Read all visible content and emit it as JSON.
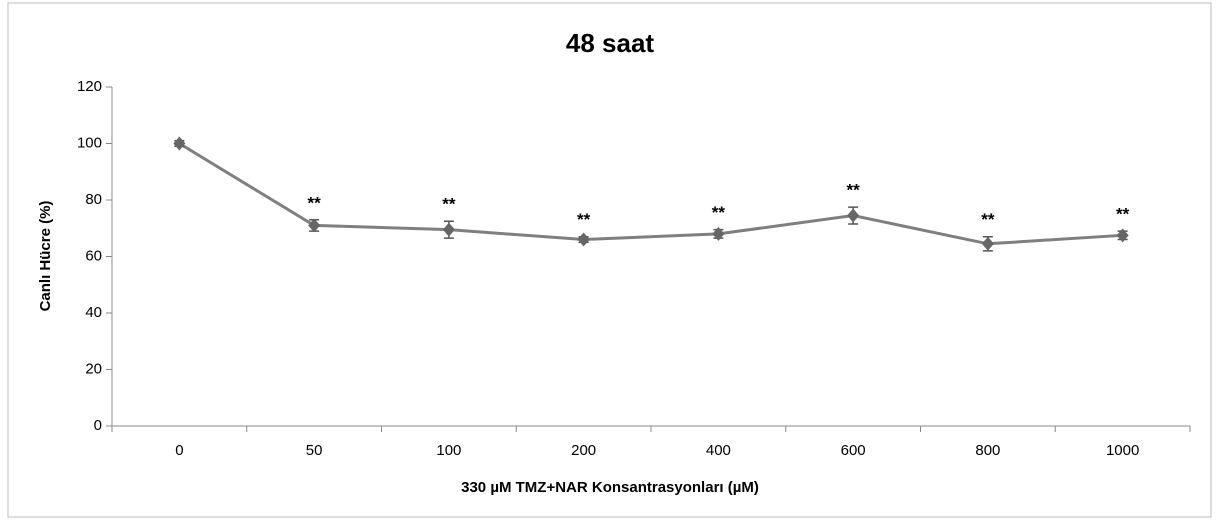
{
  "chart_data": {
    "type": "line",
    "title": "48 saat",
    "x_label": "330 µM TMZ+NAR Konsantrasyonları (µM)",
    "y_label": "Canlı Hücre (%)",
    "categories": [
      "0",
      "50",
      "100",
      "200",
      "400",
      "600",
      "800",
      "1000"
    ],
    "series": [
      {
        "name": "Canlı Hücre",
        "color": "#7f7f7f",
        "values": [
          100,
          71,
          69.5,
          66,
          68,
          74.5,
          64.5,
          67.5
        ],
        "errors": [
          1,
          2,
          3,
          1,
          1.5,
          3,
          2.5,
          1.5
        ],
        "value_annotations": [
          null,
          "**",
          "**",
          "**",
          "**",
          "**",
          "**",
          "**"
        ]
      }
    ],
    "ylim": [
      0,
      120
    ],
    "yticks": [
      0,
      20,
      40,
      60,
      80,
      100,
      120
    ],
    "grid": false
  }
}
